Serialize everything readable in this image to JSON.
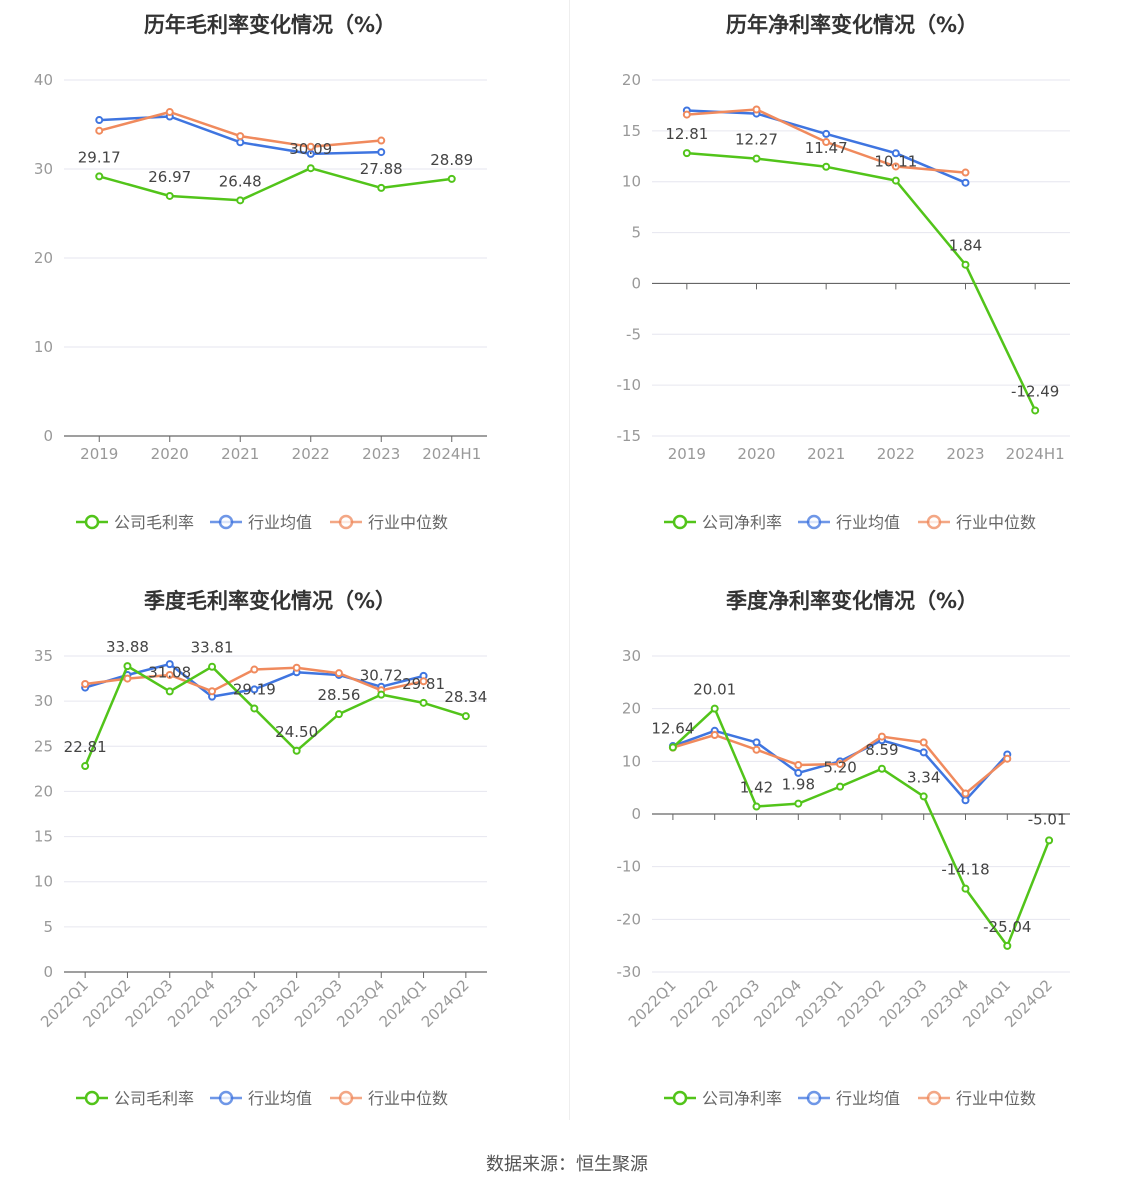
{
  "source_text": "数据来源：恒生聚源",
  "chart_data": [
    {
      "type": "line",
      "title": "历年毛利率变化情况（%）",
      "categories": [
        "2019",
        "2020",
        "2021",
        "2022",
        "2023",
        "2024H1"
      ],
      "ylim": [
        0,
        40
      ],
      "yticks": [
        0,
        10,
        20,
        30,
        40
      ],
      "grid": true,
      "legend": "bottom",
      "series": [
        {
          "name": "公司毛利率",
          "color": "#52c41a",
          "labeled": true,
          "labels": [
            "29.17",
            "26.97",
            "26.48",
            "30.09",
            "27.88",
            "28.89"
          ],
          "values": [
            29.17,
            26.97,
            26.48,
            30.09,
            27.88,
            28.89
          ]
        },
        {
          "name": "行业均值",
          "color": "#3f75e0",
          "labeled": false,
          "values": [
            35.5,
            35.9,
            33.0,
            31.7,
            31.9,
            null
          ]
        },
        {
          "name": "行业中位数",
          "color": "#f08a5d",
          "labeled": false,
          "values": [
            34.3,
            36.4,
            33.7,
            32.5,
            33.2,
            null
          ]
        }
      ]
    },
    {
      "type": "line",
      "title": "历年净利率变化情况（%）",
      "categories": [
        "2019",
        "2020",
        "2021",
        "2022",
        "2023",
        "2024H1"
      ],
      "ylim": [
        -15,
        20
      ],
      "yticks": [
        -15,
        -10,
        -5,
        0,
        5,
        10,
        15,
        20
      ],
      "grid": true,
      "legend": "bottom",
      "series": [
        {
          "name": "公司净利率",
          "color": "#52c41a",
          "labeled": true,
          "labels": [
            "12.81",
            "12.27",
            "11.47",
            "10.11",
            "1.84",
            "-12.49"
          ],
          "values": [
            12.81,
            12.27,
            11.47,
            10.11,
            1.84,
            -12.49
          ]
        },
        {
          "name": "行业均值",
          "color": "#3f75e0",
          "labeled": false,
          "values": [
            17.0,
            16.7,
            14.7,
            12.8,
            9.9,
            null
          ]
        },
        {
          "name": "行业中位数",
          "color": "#f08a5d",
          "labeled": false,
          "values": [
            16.6,
            17.1,
            13.9,
            11.5,
            10.9,
            null
          ]
        }
      ]
    },
    {
      "type": "line",
      "title": "季度毛利率变化情况（%）",
      "categories": [
        "2022Q1",
        "2022Q2",
        "2022Q3",
        "2022Q4",
        "2023Q1",
        "2023Q2",
        "2023Q3",
        "2023Q4",
        "2024Q1",
        "2024Q2"
      ],
      "ylim": [
        0,
        35
      ],
      "yticks": [
        0,
        5,
        10,
        15,
        20,
        25,
        30,
        35
      ],
      "grid": true,
      "legend": "bottom",
      "rotate_xticks": true,
      "series": [
        {
          "name": "公司毛利率",
          "color": "#52c41a",
          "labeled": true,
          "labels": [
            "22.81",
            "33.88",
            "31.08",
            "33.81",
            "29.19",
            "24.50",
            "28.56",
            "30.72",
            "29.81",
            "28.34"
          ],
          "values": [
            22.81,
            33.88,
            31.08,
            33.81,
            29.19,
            24.5,
            28.56,
            30.72,
            29.81,
            28.34
          ]
        },
        {
          "name": "行业均值",
          "color": "#3f75e0",
          "labeled": false,
          "values": [
            31.5,
            32.9,
            34.1,
            30.5,
            31.3,
            33.2,
            32.9,
            31.6,
            32.8,
            null
          ]
        },
        {
          "name": "行业中位数",
          "color": "#f08a5d",
          "labeled": false,
          "values": [
            31.9,
            32.5,
            32.9,
            31.1,
            33.5,
            33.7,
            33.1,
            31.2,
            32.2,
            null
          ]
        }
      ]
    },
    {
      "type": "line",
      "title": "季度净利率变化情况（%）",
      "categories": [
        "2022Q1",
        "2022Q2",
        "2022Q3",
        "2022Q4",
        "2023Q1",
        "2023Q2",
        "2023Q3",
        "2023Q4",
        "2024Q1",
        "2024Q2"
      ],
      "ylim": [
        -30,
        30
      ],
      "yticks": [
        -30,
        -20,
        -10,
        0,
        10,
        20,
        30
      ],
      "grid": true,
      "legend": "bottom",
      "rotate_xticks": true,
      "series": [
        {
          "name": "公司净利率",
          "color": "#52c41a",
          "labeled": true,
          "labels": [
            "12.64",
            "20.01",
            "1.42",
            "1.98",
            "5.20",
            "8.59",
            "3.34",
            "-14.18",
            "-25.04",
            "-5.01"
          ],
          "values": [
            12.64,
            20.01,
            1.42,
            1.98,
            5.2,
            8.59,
            3.34,
            -14.18,
            -25.04,
            -5.01
          ]
        },
        {
          "name": "行业均值",
          "color": "#3f75e0",
          "labeled": false,
          "values": [
            12.9,
            15.8,
            13.6,
            7.8,
            10.0,
            14.0,
            11.7,
            2.6,
            11.3,
            null
          ]
        },
        {
          "name": "行业中位数",
          "color": "#f08a5d",
          "labeled": false,
          "values": [
            12.6,
            15.0,
            12.2,
            9.3,
            9.5,
            14.7,
            13.6,
            3.9,
            10.5,
            null
          ]
        }
      ]
    }
  ]
}
